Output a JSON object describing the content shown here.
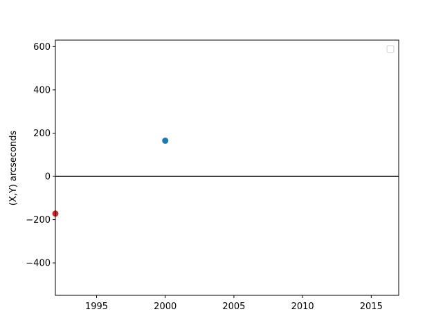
{
  "chart_data": {
    "type": "scatter",
    "title": "",
    "xlabel": "",
    "ylabel": "(X,Y) arcseconds",
    "xlim": [
      1992,
      2017
    ],
    "ylim": [
      -550,
      630
    ],
    "xticks": [
      1995,
      2000,
      2005,
      2010,
      2015
    ],
    "yticks": [
      -400,
      -200,
      0,
      200,
      400,
      600
    ],
    "ytick_labels": [
      "−400",
      "−200",
      "0",
      "200",
      "400",
      "600"
    ],
    "xtick_labels": [
      "1995",
      "2000",
      "2005",
      "2010",
      "2015"
    ],
    "reference_line": {
      "y": 0,
      "color": "#000000"
    },
    "series": [
      {
        "color": "#1f77b4",
        "points": [
          {
            "x": 2000,
            "y": 165
          }
        ]
      },
      {
        "color": "#d62728",
        "points": [
          {
            "x": 1992,
            "y": -172
          }
        ]
      }
    ],
    "legend": {
      "placement": "top-right",
      "entries": []
    },
    "grid": false
  }
}
